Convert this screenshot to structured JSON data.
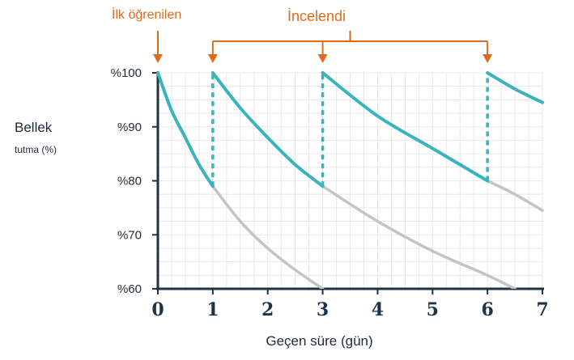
{
  "chart_data": {
    "type": "line",
    "title": "",
    "ylabel": "Bellek",
    "ylabel_sub": "tutma (%)",
    "xlabel": "Geçen süre (gün)",
    "xlim": [
      0,
      7
    ],
    "ylim": [
      60,
      100
    ],
    "x_ticks": [
      "0",
      "1",
      "2",
      "3",
      "4",
      "5",
      "6",
      "7"
    ],
    "y_ticks": [
      "%60",
      "%70",
      "%80",
      "%90",
      "%100"
    ],
    "y_tick_values": [
      60,
      70,
      80,
      90,
      100
    ],
    "grid": true,
    "annotations": {
      "first_learned": "İlk öğrenilen",
      "first_learned_x": 0,
      "reviewed": "İncelendi",
      "reviewed_x": [
        1,
        3,
        6
      ]
    },
    "series": [
      {
        "role": "retained",
        "points": [
          [
            0,
            100
          ],
          [
            0.25,
            93
          ],
          [
            0.5,
            88
          ],
          [
            0.75,
            83
          ],
          [
            1,
            79
          ]
        ]
      },
      {
        "role": "forgotten",
        "points": [
          [
            1,
            79
          ],
          [
            1.5,
            72.5
          ],
          [
            2,
            67.5
          ],
          [
            2.5,
            63.5
          ],
          [
            3,
            60
          ]
        ]
      },
      {
        "role": "retained",
        "points": [
          [
            1,
            100
          ],
          [
            1.5,
            93.5
          ],
          [
            2,
            88
          ],
          [
            2.5,
            83
          ],
          [
            3,
            79
          ]
        ]
      },
      {
        "role": "forgotten",
        "points": [
          [
            3,
            79
          ],
          [
            4,
            72.5
          ],
          [
            5,
            67
          ],
          [
            6,
            62.5
          ],
          [
            6.5,
            60
          ]
        ]
      },
      {
        "role": "retained",
        "points": [
          [
            3,
            100
          ],
          [
            4,
            92
          ],
          [
            5,
            86
          ],
          [
            6,
            80
          ]
        ]
      },
      {
        "role": "forgotten",
        "points": [
          [
            6,
            80
          ],
          [
            6.5,
            77.5
          ],
          [
            7,
            74.5
          ]
        ]
      },
      {
        "role": "retained",
        "points": [
          [
            6,
            100
          ],
          [
            6.5,
            97
          ],
          [
            7,
            94.5
          ]
        ]
      }
    ],
    "review_drops": [
      {
        "x": 1,
        "from": 79,
        "to": 100
      },
      {
        "x": 3,
        "from": 79,
        "to": 100
      },
      {
        "x": 6,
        "from": 80,
        "to": 100
      }
    ],
    "colors": {
      "retained": "#3bb3bc",
      "forgotten": "#c4c4c4",
      "annotation": "#e06b1f",
      "axis": "#1f3347",
      "grid": "#e4e4e4"
    }
  }
}
